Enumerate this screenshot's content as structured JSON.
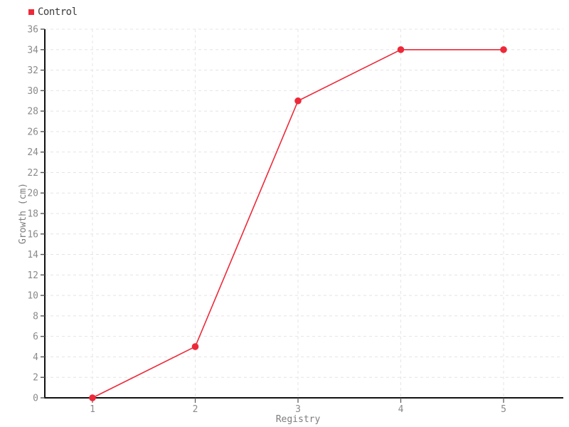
{
  "legend": {
    "label": "Control"
  },
  "colors": {
    "series": "#ed2939",
    "grid": "#e4e4e4",
    "axis": "#111111",
    "tick": "#555555",
    "tick_label": "#8a8a8a",
    "axis_label": "#7d7d7d",
    "legend_text": "#3d3d3d",
    "background": "#ffffff"
  },
  "chart_data": {
    "type": "line",
    "title": "",
    "x": [
      1,
      2,
      3,
      4,
      5
    ],
    "categories": [
      "1",
      "2",
      "3",
      "4",
      "5"
    ],
    "series": [
      {
        "name": "Control",
        "values": [
          0,
          5,
          29,
          34,
          34
        ],
        "color": "#ed2939"
      }
    ],
    "xlabel": "Registry",
    "ylabel": "Growth (cm)",
    "ylim": [
      0,
      36
    ],
    "y_tick_step": 2,
    "y_tick_labels": [
      "0",
      "2",
      "4",
      "6",
      "8",
      "10",
      "12",
      "14",
      "16",
      "18",
      "20",
      "22",
      "24",
      "26",
      "28",
      "30",
      "32",
      "34",
      "36"
    ],
    "grid": true,
    "grid_style": "dashed",
    "legend_position": "top-left",
    "marker": "circle",
    "marker_size": 4.8
  }
}
